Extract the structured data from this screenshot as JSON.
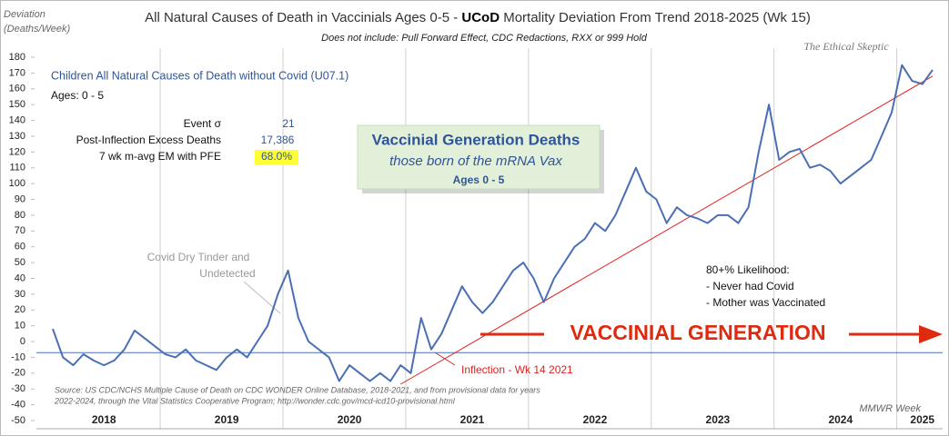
{
  "chart_data": {
    "type": "line",
    "title": [
      "All Natural Causes of Death in Vaccinials Ages 0-5 - ",
      "UCoD",
      " Mortality Deviation From Trend  2018-2025 (Wk 15)"
    ],
    "subtitle": "Does not include: Pull Forward Effect,  CDC Redactions, RXX or 999 Hold",
    "watermark": "The Ethical Skeptic",
    "ylabel": [
      "Deviation",
      "(Deaths/Week)"
    ],
    "xlabel": "MMWR Week",
    "ages": "Ages: 0 - 5",
    "stats": [
      {
        "label": "Event σ",
        "value": "21"
      },
      {
        "label": "Post-Inflection Excess Deaths",
        "value": "17,386"
      },
      {
        "label": "7 wk m-avg EM with PFE",
        "value": "68.0%"
      }
    ],
    "callout": [
      "Vaccinial Generation Deaths",
      "those born of the mRNA Vax",
      "Ages 0 - 5"
    ],
    "annotations": {
      "tinder": [
        "Covid Dry Tinder and",
        "Undetected"
      ],
      "inflection": "Inflection - Wk 14 2021",
      "likelihood": [
        "80+% Likelihood:",
        "- Never had Covid",
        "- Mother was Vaccinated"
      ],
      "banner": "VACCINIAL GENERATION"
    },
    "source": [
      "Source: US CDC/NCHS Multiple Cause of Death on CDC WONDER Online Database, 2018-2021, and from provisional data for years",
      "2022-2024, through the Vital Statistics Cooperative Program; http://wonder.cdc.gov/mcd-icd10-provisional.html",
      ""
    ],
    "categories": [
      null,
      null,
      null,
      null,
      null,
      "2018",
      null,
      null,
      null,
      null,
      null,
      null,
      null,
      null,
      null,
      null,
      null,
      "2019",
      null,
      null,
      null,
      null,
      null,
      null,
      null,
      null,
      null,
      null,
      null,
      "2020",
      null,
      null,
      null,
      null,
      null,
      null,
      null,
      null,
      null,
      null,
      null,
      "2021",
      null,
      null,
      null,
      null,
      null,
      null,
      null,
      null,
      null,
      null,
      null,
      "2022",
      null,
      null,
      null,
      null,
      null,
      null,
      null,
      null,
      null,
      null,
      null,
      "2023",
      null,
      null,
      null,
      null,
      null,
      null,
      null,
      null,
      null,
      null,
      null,
      "2024",
      null,
      null,
      null,
      null,
      null,
      null,
      null,
      "2025",
      null
    ],
    "series": [
      {
        "name": "Children All Natural Causes of Death without Covid (U07.1)",
        "color": "#4a6fb5",
        "values": [
          8,
          -10,
          -15,
          -8,
          -12,
          -15,
          -12,
          -5,
          7,
          2,
          -3,
          -8,
          -10,
          -5,
          -12,
          -15,
          -18,
          -10,
          -5,
          -10,
          0,
          10,
          30,
          45,
          15,
          0,
          -5,
          -10,
          -25,
          -15,
          -20,
          -25,
          -20,
          -25,
          -15,
          -20,
          15,
          -5,
          5,
          20,
          35,
          25,
          18,
          25,
          35,
          45,
          50,
          40,
          25,
          40,
          50,
          60,
          65,
          75,
          70,
          80,
          95,
          110,
          95,
          90,
          75,
          85,
          80,
          78,
          75,
          80,
          80,
          75,
          85,
          120,
          150,
          115,
          120,
          122,
          110,
          112,
          108,
          100,
          105,
          110,
          115,
          130,
          145,
          175,
          165,
          163,
          172
        ]
      }
    ],
    "trend": {
      "color": "#e02020",
      "values": [
        -27,
        168
      ]
    },
    "baseline": -7,
    "ylim": [
      -50,
      180
    ],
    "yticks": [
      -50,
      -40,
      -30,
      -20,
      -10,
      0,
      10,
      20,
      30,
      40,
      50,
      60,
      70,
      80,
      90,
      100,
      110,
      120,
      130,
      140,
      150,
      160,
      170,
      180
    ]
  }
}
